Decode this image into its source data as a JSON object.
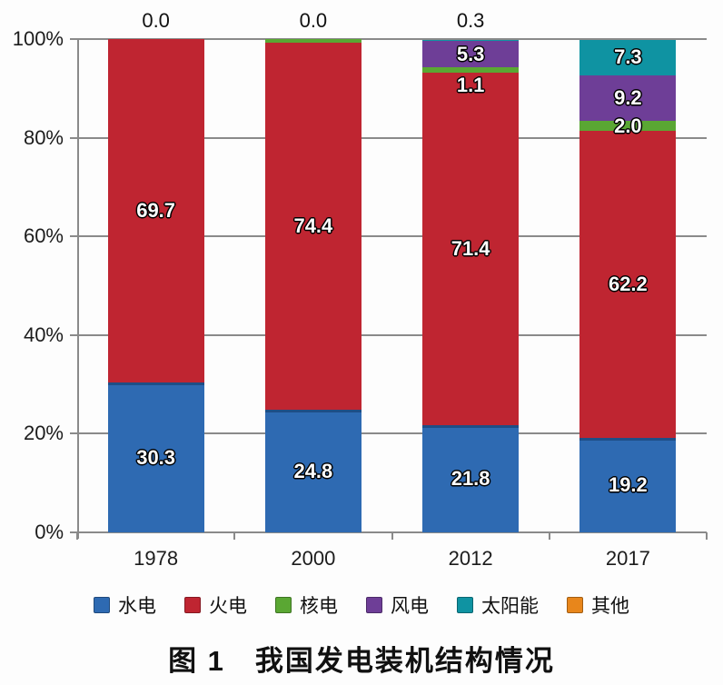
{
  "figure": {
    "title": "图 1　我国发电装机结构情况"
  },
  "chart_data": {
    "type": "bar",
    "stacked": true,
    "percent_stacked": true,
    "title": "图 1　我国发电装机结构情况",
    "xlabel": "",
    "ylabel": "",
    "unit": "%",
    "categories": [
      "1978",
      "2000",
      "2012",
      "2017"
    ],
    "series": [
      {
        "name": "水电",
        "color": "#2e6ab2",
        "values": [
          30.3,
          24.8,
          21.8,
          19.2
        ]
      },
      {
        "name": "火电",
        "color": "#bf2531",
        "values": [
          69.7,
          74.4,
          71.4,
          62.2
        ]
      },
      {
        "name": "核电",
        "color": "#5aa733",
        "values": [
          0.0,
          0.8,
          1.1,
          2.0
        ]
      },
      {
        "name": "风电",
        "color": "#6e3e97",
        "values": [
          0.0,
          0.0,
          5.3,
          9.2
        ]
      },
      {
        "name": "太阳能",
        "color": "#0f93a2",
        "values": [
          0.0,
          0.0,
          0.3,
          7.3
        ]
      },
      {
        "name": "其他",
        "color": "#e8861b",
        "values": [
          0.0,
          0.0,
          0.0,
          0.0
        ]
      }
    ],
    "bar_labels": [
      {
        "bar": 0,
        "series": 0,
        "text": "30.3",
        "pos": "segment-center"
      },
      {
        "bar": 0,
        "series": 1,
        "text": "69.7",
        "pos": "segment-center"
      },
      {
        "bar": 0,
        "text": "0.0",
        "pos": "above"
      },
      {
        "bar": 1,
        "series": 0,
        "text": "24.8",
        "pos": "segment-center"
      },
      {
        "bar": 1,
        "series": 1,
        "text": "74.4",
        "pos": "segment-center"
      },
      {
        "bar": 1,
        "text": "0.0",
        "pos": "above"
      },
      {
        "bar": 2,
        "series": 0,
        "text": "21.8",
        "pos": "segment-center"
      },
      {
        "bar": 2,
        "series": 1,
        "text": "71.4",
        "pos": "segment-center"
      },
      {
        "bar": 2,
        "series": 2,
        "text": "1.1",
        "pos": "below-segment"
      },
      {
        "bar": 2,
        "series": 3,
        "text": "5.3",
        "pos": "segment-center"
      },
      {
        "bar": 2,
        "text": "0.3",
        "pos": "above"
      },
      {
        "bar": 3,
        "series": 0,
        "text": "19.2",
        "pos": "segment-center"
      },
      {
        "bar": 3,
        "series": 1,
        "text": "62.2",
        "pos": "segment-center"
      },
      {
        "bar": 3,
        "series": 2,
        "text": "2.0",
        "pos": "segment-center"
      },
      {
        "bar": 3,
        "series": 3,
        "text": "9.2",
        "pos": "segment-center"
      },
      {
        "bar": 3,
        "series": 4,
        "text": "7.3",
        "pos": "segment-center"
      }
    ],
    "y_axis": {
      "ticks": [
        "0%",
        "20%",
        "40%",
        "60%",
        "80%",
        "100%"
      ],
      "ylim": [
        0,
        100
      ],
      "grid": true
    },
    "legend_position": "bottom",
    "grid_color": "#8a8a8a",
    "label_outline_color": "#000000",
    "label_text_color": "#ffffff"
  }
}
